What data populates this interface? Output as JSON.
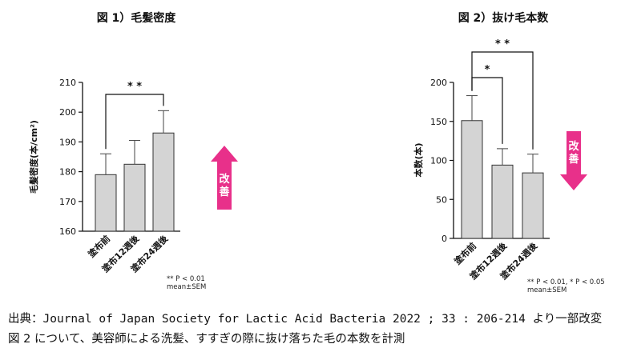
{
  "chart_data": [
    {
      "type": "bar",
      "title": "図 1）毛髪密度",
      "ylabel": "毛髪密度(本/cm²)",
      "ylim": [
        160,
        210
      ],
      "yticks": [
        160,
        170,
        180,
        190,
        200,
        210
      ],
      "categories": [
        "塗布前",
        "塗布12週後",
        "塗布24週後"
      ],
      "values": [
        179,
        182.5,
        193
      ],
      "errors": [
        7,
        8,
        7.5
      ],
      "significance": [
        {
          "from": 0,
          "to": 2,
          "label": "* *"
        }
      ],
      "arrow": {
        "direction": "up",
        "label": [
          "改",
          "善"
        ],
        "color": "#e8308a"
      },
      "notes": [
        "** P < 0.01",
        "mean±SEM"
      ]
    },
    {
      "type": "bar",
      "title": "図 2）抜け毛本数",
      "ylabel": "本数(本)",
      "ylim": [
        0,
        200
      ],
      "yticks": [
        0,
        50,
        100,
        150,
        200
      ],
      "categories": [
        "塗布前",
        "塗布12週後",
        "塗布24週後"
      ],
      "values": [
        151,
        94,
        84
      ],
      "errors": [
        32,
        21,
        24
      ],
      "significance": [
        {
          "from": 0,
          "to": 1,
          "label": "*"
        },
        {
          "from": 0,
          "to": 2,
          "label": "* *"
        }
      ],
      "arrow": {
        "direction": "down",
        "label": [
          "改",
          "善"
        ],
        "color": "#e8308a"
      },
      "notes": [
        "** P < 0.01, * P < 0.05",
        "mean±SEM"
      ]
    }
  ],
  "footer": {
    "source": "出典：Journal of Japan Society for Lactic Acid Bacteria 2022 ; 33 : 206-214 より一部改変",
    "description": "図 2 について、美容師による洗髪、すすぎの際に抜け落ちた毛の本数を計測"
  },
  "colors": {
    "bar": "#d4d4d4",
    "axis": "#111111",
    "arrow": "#e8308a"
  }
}
